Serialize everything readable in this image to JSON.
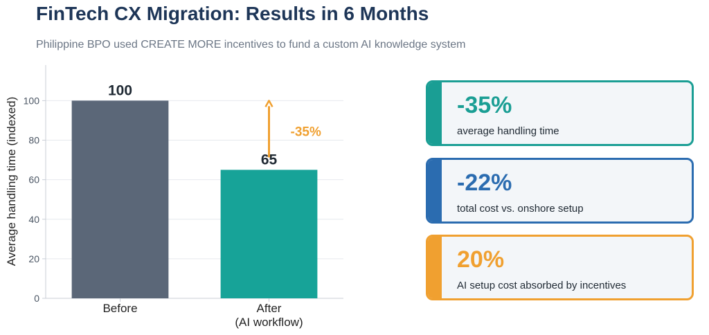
{
  "header": {
    "title": "FinTech CX Migration: Results in 6 Months",
    "subtitle": "Philippine BPO used CREATE MORE incentives to fund a custom AI knowledge system"
  },
  "chart_data": {
    "type": "bar",
    "categories": [
      "Before",
      "After\n(AI workflow)"
    ],
    "values": [
      100,
      65
    ],
    "value_labels": [
      "100",
      "65"
    ],
    "ylabel": "Average handling time (indexed)",
    "ylim": [
      0,
      118
    ],
    "yticks": [
      0,
      20,
      40,
      60,
      80,
      100
    ],
    "grid": true,
    "bar_colors": [
      "#5b6778",
      "#17a398"
    ],
    "annotation": {
      "text": "-35%",
      "color": "#f0a030",
      "from_value": 65,
      "to_value": 100
    }
  },
  "cards": [
    {
      "value": "-35%",
      "label": "average handling time",
      "color": "#1a9e94"
    },
    {
      "value": "-22%",
      "label": "total cost vs. onshore setup",
      "color": "#2b6cb0"
    },
    {
      "value": "20%",
      "label": "AI setup cost absorbed by incentives",
      "color": "#f0a030"
    }
  ]
}
